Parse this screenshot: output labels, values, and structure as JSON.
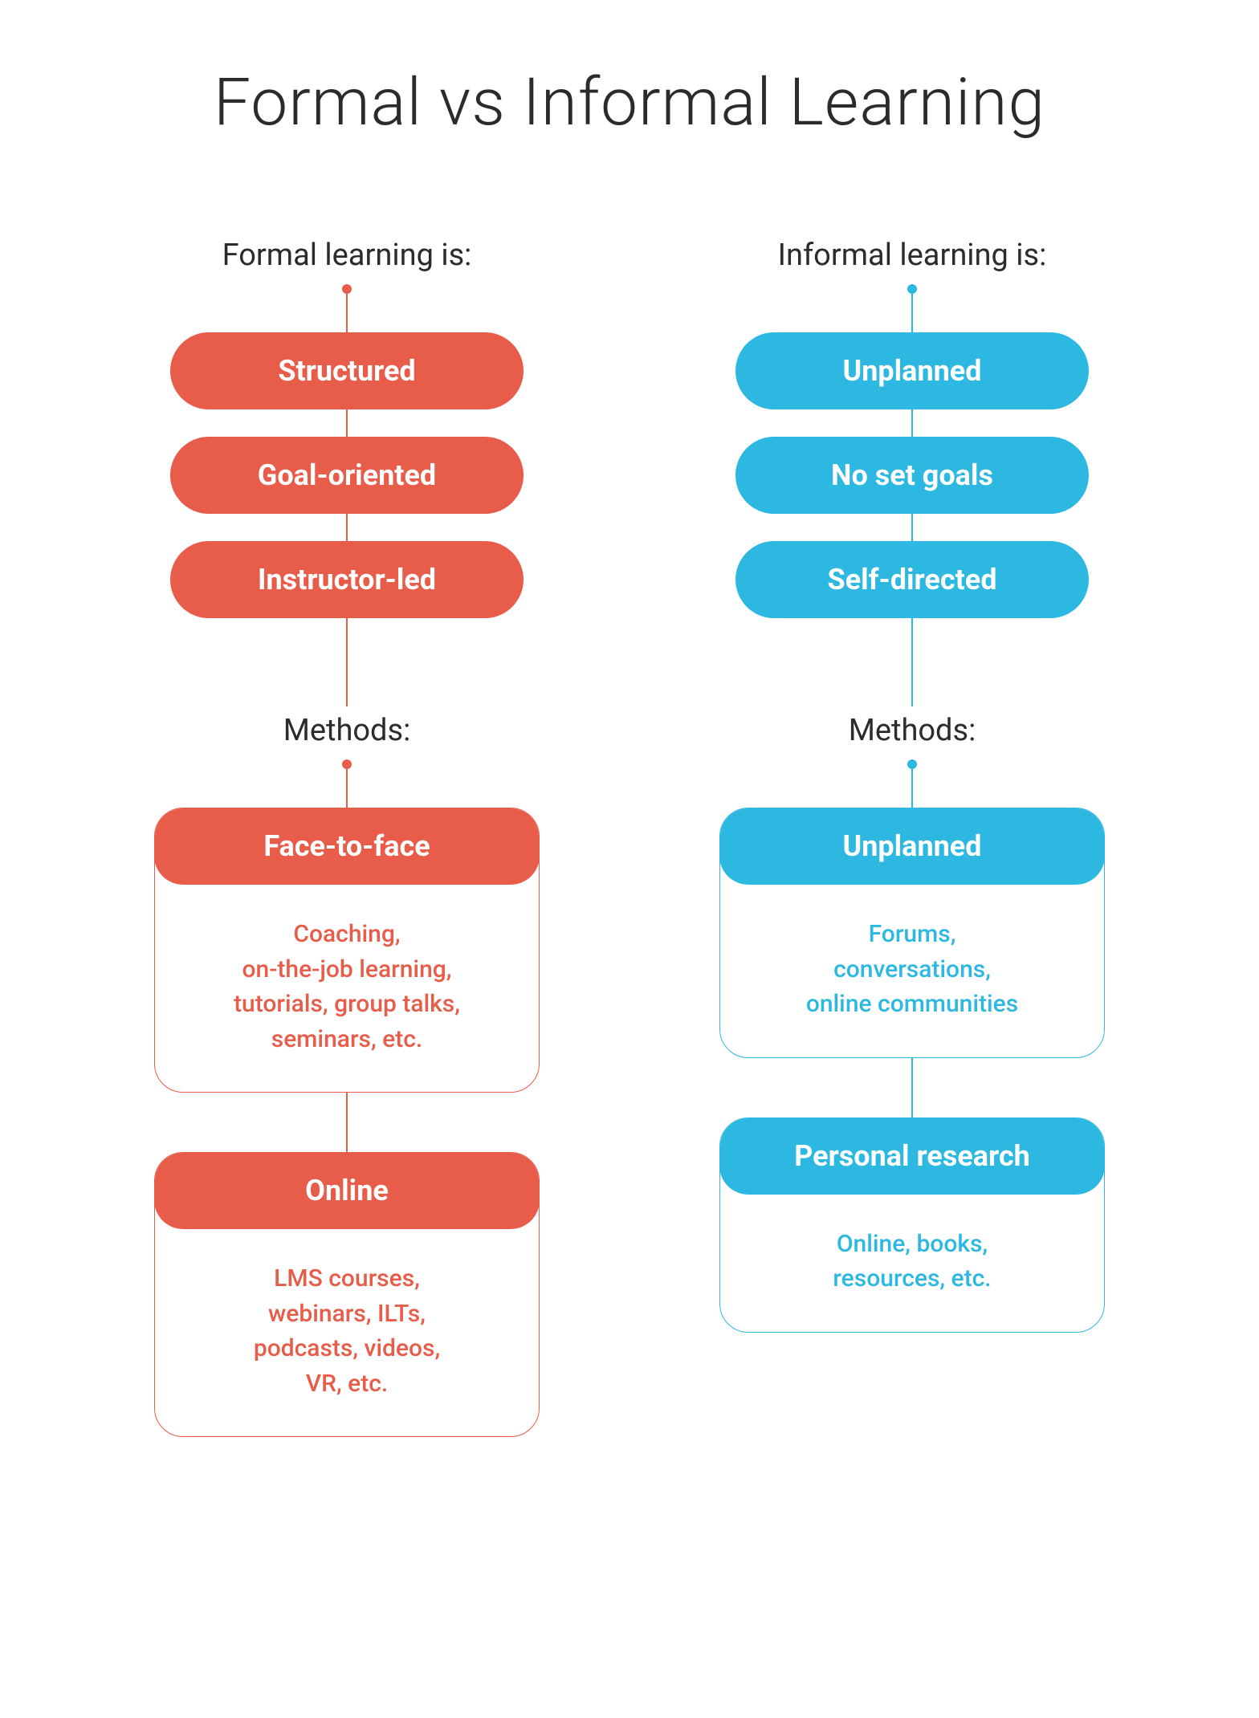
{
  "title": "Formal vs Informal Learning",
  "title_fontsize": 82,
  "title_color": "#2b2b2b",
  "background_color": "#ffffff",
  "subheading_fontsize": 38,
  "subheading_color": "#2b2b2b",
  "pill_fontsize": 36,
  "method_header_fontsize": 36,
  "method_body_fontsize": 30,
  "connector_short_height": 48,
  "connector_gap_height": 34,
  "connector_between_cards_height": 74,
  "columns": [
    {
      "key": "formal",
      "color": "#e85c4a",
      "heading": "Formal learning is:",
      "traits": [
        "Structured",
        "Goal-oriented",
        "Instructor-led"
      ],
      "methods_heading": "Methods:",
      "methods": [
        {
          "title": "Face-to-face",
          "body": "Coaching,\non-the-job learning,\ntutorials, group talks,\nseminars, etc."
        },
        {
          "title": "Online",
          "body": "LMS courses,\nwebinars, ILTs,\npodcasts, videos,\nVR, etc."
        }
      ]
    },
    {
      "key": "informal",
      "color": "#2cb8e0",
      "heading": "Informal learning is:",
      "traits": [
        "Unplanned",
        "No set goals",
        "Self-directed"
      ],
      "methods_heading": "Methods:",
      "methods": [
        {
          "title": "Unplanned",
          "body": "Forums,\nconversations,\nonline communities"
        },
        {
          "title": "Personal research",
          "body": "Online, books,\nresources, etc."
        }
      ]
    }
  ]
}
